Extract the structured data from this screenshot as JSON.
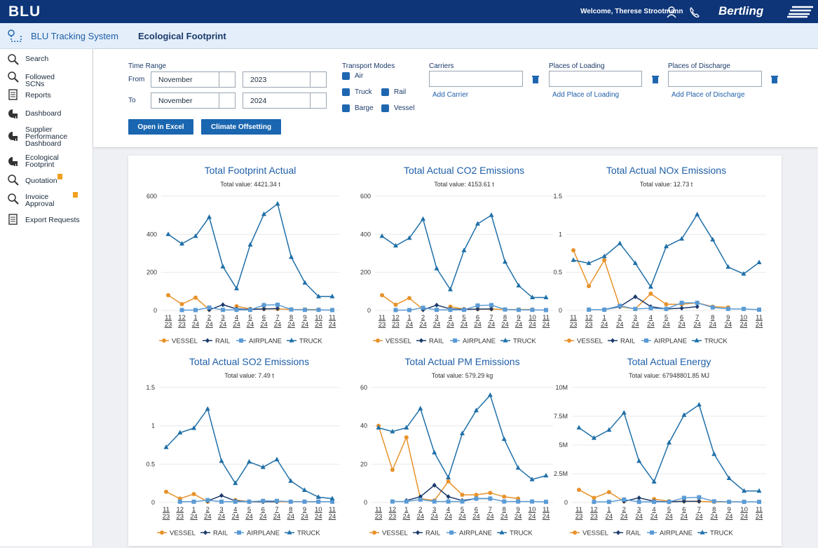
{
  "header": {
    "logo": "BLU",
    "welcome": "Welcome, Therese Strootmann",
    "brand": "Bertling"
  },
  "subheader": {
    "app": "BLU Tracking System",
    "page": "Ecological Footprint"
  },
  "sidebar": {
    "items": [
      "Search",
      "Followed SCNs",
      "Reports",
      "Dashboard",
      "Supplier Performance Dashboard",
      "Ecological Footprint",
      "Quotation",
      "Invoice Approval",
      "Export Requests"
    ]
  },
  "filters": {
    "time_range": "Time Range",
    "from_label": "From",
    "from_month": "November",
    "from_year": "2023",
    "to_label": "To",
    "to_month": "November",
    "to_year": "2024",
    "transport_modes": "Transport Modes",
    "modes": [
      "Air",
      "Truck",
      "Rail",
      "Barge",
      "Vessel"
    ],
    "carriers": "Carriers",
    "add_carrier": "Add Carrier",
    "places_loading": "Places of Loading",
    "add_place_loading": "Add Place of Loading",
    "places_discharge": "Places of Discharge",
    "add_place_discharge": "Add Place of Discharge",
    "open_excel": "Open in Excel",
    "climate": "Climate Offsetting"
  },
  "chart_data": [
    {
      "type": "line",
      "title": "Total Footprint Actual",
      "subtitle": "Total value: 4421.34 t",
      "ylim": [
        0,
        600
      ],
      "yticks": [
        0,
        200,
        400,
        600
      ],
      "grid": true,
      "categories": [
        [
          "11",
          "23"
        ],
        [
          "12",
          "23"
        ],
        [
          "1",
          "24"
        ],
        [
          "2",
          "24"
        ],
        [
          "3",
          "24"
        ],
        [
          "4",
          "24"
        ],
        [
          "5",
          "24"
        ],
        [
          "6",
          "24"
        ],
        [
          "7",
          "24"
        ],
        [
          "8",
          "24"
        ],
        [
          "9",
          "24"
        ],
        [
          "10",
          "24"
        ],
        [
          "11",
          "24"
        ]
      ],
      "series": [
        {
          "name": "VESSEL",
          "color": "#e8922a",
          "marker": "circle",
          "values": [
            80,
            33,
            67,
            5,
            null,
            22,
            8,
            8,
            8,
            5,
            5,
            5,
            null
          ]
        },
        {
          "name": "RAIL",
          "color": "#1b3a6b",
          "marker": "diamond",
          "values": [
            null,
            null,
            null,
            3,
            30,
            8,
            5,
            8,
            10,
            null,
            null,
            null,
            null
          ]
        },
        {
          "name": "AIRPLANE",
          "color": "#5b9bd5",
          "marker": "square",
          "values": [
            null,
            2,
            2,
            15,
            3,
            3,
            3,
            28,
            30,
            5,
            3,
            3,
            2
          ]
        },
        {
          "name": "TRUCK",
          "color": "#1f6fa8",
          "marker": "triangle",
          "values": [
            400,
            350,
            390,
            490,
            230,
            115,
            345,
            505,
            560,
            280,
            145,
            73,
            73
          ]
        }
      ]
    },
    {
      "type": "line",
      "title": "Total Actual CO2 Emissions",
      "subtitle": "Total value: 4153.61 t",
      "ylim": [
        0,
        600
      ],
      "yticks": [
        0,
        200,
        400,
        600
      ],
      "grid": true,
      "categories": [
        [
          "11",
          "23"
        ],
        [
          "12",
          "23"
        ],
        [
          "1",
          "24"
        ],
        [
          "2",
          "24"
        ],
        [
          "3",
          "24"
        ],
        [
          "4",
          "24"
        ],
        [
          "5",
          "24"
        ],
        [
          "6",
          "24"
        ],
        [
          "7",
          "24"
        ],
        [
          "8",
          "24"
        ],
        [
          "9",
          "24"
        ],
        [
          "10",
          "24"
        ],
        [
          "11",
          "24"
        ]
      ],
      "series": [
        {
          "name": "VESSEL",
          "color": "#e8922a",
          "marker": "circle",
          "values": [
            80,
            30,
            65,
            5,
            null,
            20,
            7,
            7,
            7,
            5,
            5,
            5,
            null
          ]
        },
        {
          "name": "RAIL",
          "color": "#1b3a6b",
          "marker": "diamond",
          "values": [
            null,
            null,
            null,
            3,
            28,
            8,
            5,
            7,
            8,
            null,
            null,
            null,
            null
          ]
        },
        {
          "name": "AIRPLANE",
          "color": "#5b9bd5",
          "marker": "square",
          "values": [
            null,
            2,
            2,
            14,
            3,
            3,
            3,
            26,
            28,
            5,
            3,
            3,
            2
          ]
        },
        {
          "name": "TRUCK",
          "color": "#1f6fa8",
          "marker": "triangle",
          "values": [
            390,
            340,
            380,
            480,
            220,
            110,
            315,
            455,
            500,
            255,
            130,
            68,
            68
          ]
        }
      ]
    },
    {
      "type": "line",
      "title": "Total Actual NOx Emissions",
      "subtitle": "Total value: 12.73 t",
      "ylim": [
        0,
        1.5
      ],
      "yticks": [
        0,
        0.5,
        1,
        1.5
      ],
      "grid": true,
      "categories": [
        [
          "11",
          "23"
        ],
        [
          "12",
          "23"
        ],
        [
          "1",
          "24"
        ],
        [
          "2",
          "24"
        ],
        [
          "3",
          "24"
        ],
        [
          "4",
          "24"
        ],
        [
          "5",
          "24"
        ],
        [
          "6",
          "24"
        ],
        [
          "7",
          "24"
        ],
        [
          "8",
          "24"
        ],
        [
          "9",
          "24"
        ],
        [
          "10",
          "24"
        ],
        [
          "11",
          "24"
        ]
      ],
      "series": [
        {
          "name": "VESSEL",
          "color": "#e8922a",
          "marker": "circle",
          "values": [
            0.79,
            0.32,
            0.66,
            0.05,
            0.02,
            0.22,
            0.08,
            0.08,
            0.1,
            0.05,
            0.04,
            null,
            null
          ]
        },
        {
          "name": "RAIL",
          "color": "#1b3a6b",
          "marker": "diamond",
          "values": [
            null,
            null,
            0.01,
            0.05,
            0.18,
            0.05,
            0.02,
            0.03,
            0.05,
            null,
            null,
            null,
            null
          ]
        },
        {
          "name": "AIRPLANE",
          "color": "#5b9bd5",
          "marker": "square",
          "values": [
            null,
            0.01,
            0.01,
            0.06,
            0.02,
            0.03,
            0.02,
            0.1,
            0.1,
            0.04,
            0.02,
            0.02,
            0.01
          ]
        },
        {
          "name": "TRUCK",
          "color": "#1f6fa8",
          "marker": "triangle",
          "values": [
            0.66,
            0.62,
            0.71,
            0.88,
            0.62,
            0.31,
            0.84,
            0.94,
            1.26,
            0.93,
            0.57,
            0.48,
            0.63
          ]
        }
      ]
    },
    {
      "type": "line",
      "title": "Total Actual SO2 Emissions",
      "subtitle": "Total value: 7.49 t",
      "ylim": [
        0,
        1.5
      ],
      "yticks": [
        0,
        0.5,
        1,
        1.5
      ],
      "grid": true,
      "categories": [
        [
          "11",
          "23"
        ],
        [
          "12",
          "23"
        ],
        [
          "1",
          "24"
        ],
        [
          "2",
          "24"
        ],
        [
          "3",
          "24"
        ],
        [
          "4",
          "24"
        ],
        [
          "5",
          "24"
        ],
        [
          "6",
          "24"
        ],
        [
          "7",
          "24"
        ],
        [
          "8",
          "24"
        ],
        [
          "9",
          "24"
        ],
        [
          "10",
          "24"
        ],
        [
          "11",
          "24"
        ]
      ],
      "series": [
        {
          "name": "VESSEL",
          "color": "#e8922a",
          "marker": "circle",
          "values": [
            0.14,
            0.05,
            0.11,
            0.01,
            null,
            0.03,
            0.01,
            0.01,
            0.01,
            0.01,
            0.01,
            0.01,
            null
          ]
        },
        {
          "name": "RAIL",
          "color": "#1b3a6b",
          "marker": "diamond",
          "values": [
            null,
            null,
            null,
            0.02,
            0.09,
            0.02,
            0.01,
            0.01,
            0.01,
            null,
            null,
            null,
            null
          ]
        },
        {
          "name": "AIRPLANE",
          "color": "#5b9bd5",
          "marker": "square",
          "values": [
            null,
            0.01,
            0.01,
            0.03,
            0.01,
            0.01,
            0.01,
            0.02,
            0.02,
            0.01,
            0.01,
            0.01,
            0.01
          ]
        },
        {
          "name": "TRUCK",
          "color": "#1f6fa8",
          "marker": "triangle",
          "values": [
            0.72,
            0.91,
            0.97,
            1.22,
            0.54,
            0.25,
            0.53,
            0.46,
            0.56,
            0.28,
            0.16,
            0.07,
            0.05
          ]
        }
      ]
    },
    {
      "type": "line",
      "title": "Total Actual PM Emissions",
      "subtitle": "Total value: 579.29 kg",
      "ylim": [
        0,
        60
      ],
      "yticks": [
        0,
        20,
        40,
        60
      ],
      "grid": true,
      "categories": [
        [
          "11",
          "23"
        ],
        [
          "12",
          "23"
        ],
        [
          "1",
          "24"
        ],
        [
          "2",
          "24"
        ],
        [
          "3",
          "24"
        ],
        [
          "4",
          "24"
        ],
        [
          "5",
          "24"
        ],
        [
          "6",
          "24"
        ],
        [
          "7",
          "24"
        ],
        [
          "8",
          "24"
        ],
        [
          "9",
          "24"
        ],
        [
          "10",
          "24"
        ],
        [
          "11",
          "24"
        ]
      ],
      "series": [
        {
          "name": "VESSEL",
          "color": "#e8922a",
          "marker": "circle",
          "values": [
            40,
            17,
            34,
            2,
            1,
            11,
            4,
            4,
            5,
            3,
            2,
            null,
            null
          ]
        },
        {
          "name": "RAIL",
          "color": "#1b3a6b",
          "marker": "diamond",
          "values": [
            null,
            null,
            1,
            3,
            9,
            3,
            1,
            2,
            2,
            null,
            null,
            null,
            null
          ]
        },
        {
          "name": "AIRPLANE",
          "color": "#5b9bd5",
          "marker": "square",
          "values": [
            null,
            0.5,
            0.5,
            1.5,
            0.5,
            0.5,
            0.5,
            2,
            2,
            0.5,
            0.5,
            0.5,
            0.3
          ]
        },
        {
          "name": "TRUCK",
          "color": "#1f6fa8",
          "marker": "triangle",
          "values": [
            39,
            37,
            39,
            49,
            26,
            13,
            36,
            48,
            56,
            33,
            18,
            12,
            14
          ]
        }
      ]
    },
    {
      "type": "line",
      "title": "Total Actual Energy",
      "subtitle": "Total value: 67948801.85 MJ",
      "ylim": [
        0,
        10000000
      ],
      "yticks": [
        0,
        {
          "value": 2500000,
          "label": "2.5M"
        },
        {
          "value": 5000000,
          "label": "5M"
        },
        {
          "value": 7500000,
          "label": "7.5M"
        },
        {
          "value": 10000000,
          "label": "10M"
        }
      ],
      "grid": true,
      "categories": [
        [
          "11",
          "23"
        ],
        [
          "12",
          "23"
        ],
        [
          "1",
          "24"
        ],
        [
          "2",
          "24"
        ],
        [
          "3",
          "24"
        ],
        [
          "4",
          "24"
        ],
        [
          "5",
          "24"
        ],
        [
          "6",
          "24"
        ],
        [
          "7",
          "24"
        ],
        [
          "8",
          "24"
        ],
        [
          "9",
          "24"
        ],
        [
          "10",
          "24"
        ],
        [
          "11",
          "24"
        ]
      ],
      "series": [
        {
          "name": "VESSEL",
          "color": "#e8922a",
          "marker": "circle",
          "values": [
            1100000,
            400000,
            900000,
            100000,
            null,
            300000,
            100000,
            100000,
            100000,
            50000,
            50000,
            50000,
            null
          ]
        },
        {
          "name": "RAIL",
          "color": "#1b3a6b",
          "marker": "diamond",
          "values": [
            null,
            null,
            null,
            100000,
            400000,
            100000,
            50000,
            100000,
            100000,
            null,
            null,
            null,
            null
          ]
        },
        {
          "name": "AIRPLANE",
          "color": "#5b9bd5",
          "marker": "square",
          "values": [
            null,
            50000,
            50000,
            250000,
            50000,
            50000,
            50000,
            400000,
            450000,
            100000,
            50000,
            50000,
            50000
          ]
        },
        {
          "name": "TRUCK",
          "color": "#1f6fa8",
          "marker": "triangle",
          "values": [
            6500000,
            5600000,
            6300000,
            7800000,
            3600000,
            1800000,
            5200000,
            7600000,
            8500000,
            4200000,
            2100000,
            1000000,
            1000000
          ]
        }
      ]
    }
  ]
}
